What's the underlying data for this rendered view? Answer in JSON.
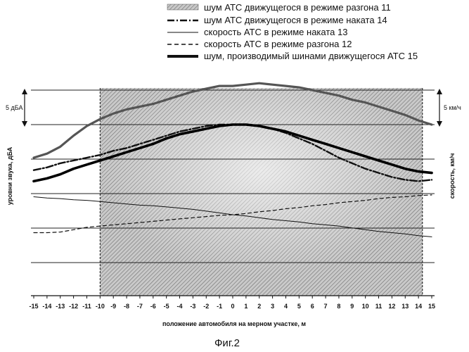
{
  "chart_data": {
    "type": "line",
    "caption": "Фиг.2",
    "xlabel": "положение автомобиля на мерном участке, м",
    "ylabel_left": "уровни звука, дБА",
    "ylabel_right": "скорость, км/ч",
    "scale_left": "5 дБА",
    "scale_right": "5 км/ч",
    "xlim": [
      -15,
      15
    ],
    "shaded_region": [
      -10,
      14.3
    ],
    "x_ticks": [
      "-15",
      "-14",
      "-13",
      "-12",
      "-11",
      "-10",
      "-9",
      "-8",
      "-7",
      "-6",
      "-5",
      "-4",
      "-3",
      "-2",
      "-1",
      "0",
      "1",
      "2",
      "3",
      "4",
      "5",
      "6",
      "7",
      "8",
      "9",
      "10",
      "11",
      "12",
      "13",
      "14",
      "15"
    ],
    "legend": [
      {
        "label": "шум АТС движущегося в режиме разгона 11",
        "style": "hatch"
      },
      {
        "label": "шум АТС движущегося в режиме наката 14",
        "style": "dashdot"
      },
      {
        "label": "скорость АТС в режиме наката 13",
        "style": "thin"
      },
      {
        "label": "скорость АТС в режиме разгона 12",
        "style": "dashed"
      },
      {
        "label": "шум, производимый шинами движущегося АТС 15",
        "style": "thick"
      }
    ],
    "series": [
      {
        "name": "шум АТС движущегося в режиме разгона 11",
        "axis": "left",
        "style": "hatch",
        "x": [
          -15,
          -14,
          -13,
          -12,
          -11,
          -10,
          -9,
          -8,
          -7,
          -6,
          -5,
          -4,
          -3,
          -2,
          -1,
          0,
          1,
          2,
          3,
          4,
          5,
          6,
          7,
          8,
          9,
          10,
          11,
          12,
          13,
          14,
          15
        ],
        "y": [
          2.6,
          2.9,
          3.4,
          4.2,
          4.9,
          5.4,
          5.8,
          6.1,
          6.3,
          6.5,
          6.8,
          7.1,
          7.4,
          7.6,
          7.8,
          7.8,
          7.9,
          8.0,
          7.9,
          7.8,
          7.7,
          7.5,
          7.3,
          7.1,
          6.8,
          6.6,
          6.3,
          6.0,
          5.7,
          5.3,
          5.0
        ]
      },
      {
        "name": "шум АТС движущегося в режиме наката 14",
        "axis": "left",
        "style": "dashdot",
        "x": [
          -15,
          -14,
          -13,
          -12,
          -11,
          -10,
          -9,
          -8,
          -7,
          -6,
          -5,
          -4,
          -3,
          -2,
          -1,
          0,
          1,
          2,
          3,
          4,
          5,
          6,
          7,
          8,
          9,
          10,
          11,
          12,
          13,
          14,
          15
        ],
        "y": [
          1.7,
          1.9,
          2.2,
          2.4,
          2.6,
          2.8,
          3.1,
          3.3,
          3.6,
          3.9,
          4.2,
          4.5,
          4.7,
          4.9,
          5.0,
          5.0,
          5.0,
          4.9,
          4.7,
          4.4,
          4.0,
          3.6,
          3.1,
          2.6,
          2.2,
          1.8,
          1.5,
          1.2,
          1.0,
          0.9,
          1.0
        ]
      },
      {
        "name": "скорость АТС в режиме наката 13",
        "axis": "right",
        "style": "thin",
        "x": [
          -15,
          -14,
          -13,
          -12,
          -11,
          -10,
          -9,
          -8,
          -7,
          -6,
          -5,
          -4,
          -3,
          -2,
          -1,
          0,
          1,
          2,
          3,
          4,
          5,
          6,
          7,
          8,
          9,
          10,
          11,
          12,
          13,
          14,
          15
        ],
        "y": [
          11.0,
          10.8,
          10.7,
          10.5,
          10.4,
          10.2,
          10.0,
          9.8,
          9.6,
          9.5,
          9.3,
          9.1,
          8.9,
          8.6,
          8.3,
          8.0,
          7.8,
          7.5,
          7.2,
          7.0,
          6.8,
          6.5,
          6.3,
          6.1,
          5.8,
          5.5,
          5.2,
          5.0,
          4.8,
          4.5,
          4.3
        ]
      },
      {
        "name": "скорость АТС в режиме разгона 12",
        "axis": "right",
        "style": "dashed",
        "x": [
          -15,
          -14,
          -13,
          -12,
          -11,
          -10,
          -9,
          -8,
          -7,
          -6,
          -5,
          -4,
          -3,
          -2,
          -1,
          0,
          1,
          2,
          3,
          4,
          5,
          6,
          7,
          8,
          9,
          10,
          11,
          12,
          13,
          14,
          15
        ],
        "y": [
          5.0,
          5.0,
          5.1,
          5.5,
          5.9,
          6.1,
          6.3,
          6.5,
          6.7,
          6.9,
          7.1,
          7.3,
          7.5,
          7.7,
          7.9,
          8.0,
          8.2,
          8.5,
          8.7,
          9.0,
          9.2,
          9.5,
          9.7,
          10.0,
          10.2,
          10.4,
          10.7,
          10.9,
          11.0,
          11.2,
          11.3
        ]
      },
      {
        "name": "шум, производимый шинами движущегося АТС 15",
        "axis": "left",
        "style": "thick",
        "x": [
          -15,
          -14,
          -13,
          -12,
          -11,
          -10,
          -9,
          -8,
          -7,
          -6,
          -5,
          -4,
          -3,
          -2,
          -1,
          0,
          1,
          2,
          3,
          4,
          5,
          6,
          7,
          8,
          9,
          10,
          11,
          12,
          13,
          14,
          15
        ],
        "y": [
          0.9,
          1.1,
          1.4,
          1.8,
          2.1,
          2.4,
          2.7,
          3.0,
          3.3,
          3.6,
          4.0,
          4.3,
          4.5,
          4.7,
          4.9,
          5.0,
          5.0,
          4.9,
          4.7,
          4.5,
          4.2,
          3.9,
          3.6,
          3.3,
          3.0,
          2.7,
          2.4,
          2.1,
          1.8,
          1.6,
          1.5
        ]
      }
    ]
  }
}
